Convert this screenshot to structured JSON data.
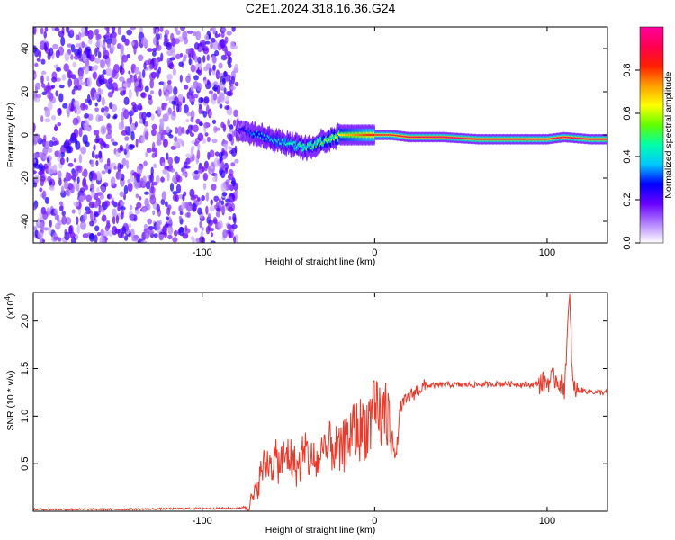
{
  "title": "C2E1.2024.318.16.36.G24",
  "colors": {
    "axis": "#000000",
    "snr_line": "#e8392a",
    "background": "#ffffff",
    "colorbar_stops": [
      "#ffffff",
      "#b080ff",
      "#6a00ff",
      "#0000ff",
      "#00c8ff",
      "#00ffaa",
      "#60ff00",
      "#ffff00",
      "#ffa000",
      "#ff2000",
      "#ff0050",
      "#ff00a0"
    ]
  },
  "chart_data": [
    {
      "type": "heatmap",
      "xlabel": "Height of straight line (km)",
      "ylabel": "Frequency (Hz)",
      "xlim": [
        -198,
        135
      ],
      "ylim": [
        -50,
        50
      ],
      "xticks": [
        -100,
        0,
        100
      ],
      "yticks": [
        -40,
        -20,
        0,
        20,
        40
      ],
      "noise_region": {
        "x": [
          -198,
          -80
        ],
        "frequency": [
          -50,
          50
        ],
        "normalized_amplitude": [
          0.05,
          0.25
        ]
      },
      "signal_track": [
        {
          "x": -80,
          "frequency": 3,
          "amplitude": 0.2
        },
        {
          "x": -70,
          "frequency": 1,
          "amplitude": 0.35
        },
        {
          "x": -60,
          "frequency": -2,
          "amplitude": 0.4
        },
        {
          "x": -50,
          "frequency": -4,
          "amplitude": 0.45
        },
        {
          "x": -40,
          "frequency": -6,
          "amplitude": 0.5
        },
        {
          "x": -30,
          "frequency": -3,
          "amplitude": 0.55
        },
        {
          "x": -20,
          "frequency": 0,
          "amplitude": 0.65
        },
        {
          "x": -10,
          "frequency": 0,
          "amplitude": 0.75
        },
        {
          "x": 0,
          "frequency": 0,
          "amplitude": 0.85
        },
        {
          "x": 10,
          "frequency": 0,
          "amplitude": 0.85
        },
        {
          "x": 20,
          "frequency": -1,
          "amplitude": 0.9
        },
        {
          "x": 40,
          "frequency": -1,
          "amplitude": 0.95
        },
        {
          "x": 60,
          "frequency": -2,
          "amplitude": 0.95
        },
        {
          "x": 80,
          "frequency": -2,
          "amplitude": 0.95
        },
        {
          "x": 100,
          "frequency": -2,
          "amplitude": 0.9
        },
        {
          "x": 110,
          "frequency": -1,
          "amplitude": 0.9
        },
        {
          "x": 125,
          "frequency": -2,
          "amplitude": 0.95
        },
        {
          "x": 135,
          "frequency": -2,
          "amplitude": 0.95
        }
      ],
      "colorbar": {
        "label": "Normalized spectral amplitude",
        "range": [
          0,
          1
        ],
        "ticks": [
          0.0,
          0.2,
          0.4,
          0.6,
          0.8
        ]
      }
    },
    {
      "type": "line",
      "xlabel": "Height of straight line (km)",
      "ylabel": "SNR (10 * v/v)",
      "y_multiplier_label": "(x10",
      "y_multiplier_exponent": "4",
      "y_multiplier_suffix": ")",
      "xlim": [
        -198,
        135
      ],
      "ylim": [
        0,
        2.3
      ],
      "xticks": [
        -100,
        0,
        100
      ],
      "yticks": [
        0.5,
        1.0,
        1.5,
        2.0
      ],
      "ytick_labels": [
        "0.5",
        "1.0",
        "1.5",
        "2.0"
      ],
      "series": [
        {
          "x": [
            -198,
            -150,
            -100,
            -80,
            -74,
            -70,
            -65,
            -60,
            -55,
            -50,
            -45,
            -40,
            -35,
            -30,
            -25,
            -20,
            -15,
            -10,
            -5,
            0,
            5,
            10,
            12,
            15,
            20,
            25,
            30,
            40,
            50,
            60,
            70,
            80,
            90,
            100,
            105,
            110,
            113,
            115,
            120,
            130,
            135
          ],
          "values": [
            0.02,
            0.02,
            0.03,
            0.03,
            0.05,
            0.15,
            0.45,
            0.55,
            0.5,
            0.6,
            0.45,
            0.6,
            0.5,
            0.55,
            0.7,
            0.6,
            0.8,
            0.85,
            0.9,
            1.0,
            1.0,
            0.9,
            0.5,
            1.1,
            1.2,
            1.28,
            1.32,
            1.33,
            1.33,
            1.33,
            1.34,
            1.34,
            1.33,
            1.36,
            1.4,
            1.3,
            2.25,
            1.28,
            1.27,
            1.25,
            1.25
          ]
        }
      ]
    }
  ]
}
